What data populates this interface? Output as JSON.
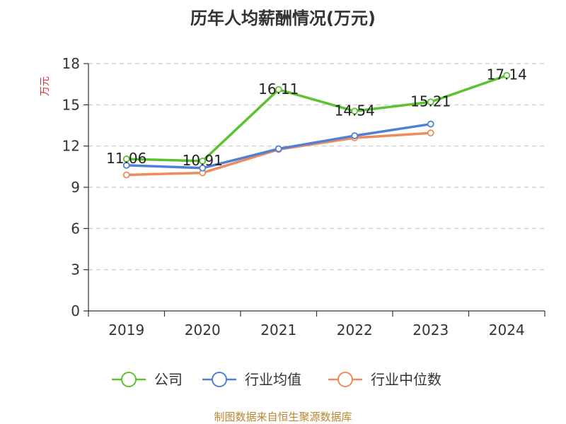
{
  "chart_data": {
    "type": "line",
    "title": "历年人均薪酬情况(万元)",
    "ylabel": "万元",
    "xlabel": "",
    "categories": [
      "2019",
      "2020",
      "2021",
      "2022",
      "2023",
      "2024"
    ],
    "ylim": [
      0,
      18
    ],
    "yticks": [
      0,
      3,
      6,
      9,
      12,
      15,
      18
    ],
    "grid": true,
    "legend_position": "bottom",
    "series": [
      {
        "name": "公司",
        "color": "#5cc22f",
        "values": [
          11.06,
          10.91,
          16.11,
          14.54,
          15.21,
          17.14
        ],
        "labels": [
          "11.06",
          "10.91",
          "16.11",
          "14.54",
          "15.21",
          "17.14"
        ]
      },
      {
        "name": "行业均值",
        "color": "#4f80d6",
        "values": [
          10.6,
          10.4,
          11.8,
          12.75,
          13.6,
          null
        ]
      },
      {
        "name": "行业中位数",
        "color": "#f08a5a",
        "values": [
          9.9,
          10.05,
          11.75,
          12.6,
          12.95,
          null
        ]
      }
    ],
    "source": "制图数据来自恒生聚源数据库",
    "source_color": "#b8862e",
    "ylabel_color": "#e03030"
  }
}
